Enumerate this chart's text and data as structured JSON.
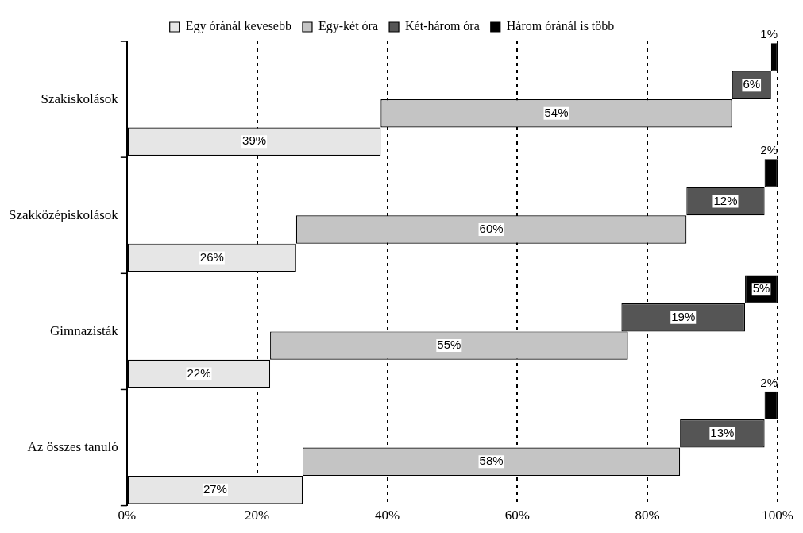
{
  "chart_data": {
    "type": "bar",
    "orientation": "horizontal",
    "categories": [
      "Szakiskolások",
      "Szakközépiskolások",
      "Gimnazisták",
      "Az összes tanuló"
    ],
    "series": [
      {
        "name": "Egy óránál kevesebb",
        "color": "#e6e6e6",
        "values": [
          39,
          26,
          22,
          27
        ],
        "base": [
          0,
          0,
          0,
          0
        ],
        "value_labels": [
          "39%",
          "26%",
          "22%",
          "27%"
        ]
      },
      {
        "name": "Egy-két óra",
        "color": "#c4c4c4",
        "values": [
          54,
          60,
          55,
          58
        ],
        "base": [
          39,
          26,
          22,
          27
        ],
        "value_labels": [
          "54%",
          "60%",
          "55%",
          "58%"
        ]
      },
      {
        "name": "Két-három óra",
        "color": "#555555",
        "values": [
          6,
          12,
          19,
          13
        ],
        "base": [
          93,
          86,
          76,
          85
        ],
        "value_labels": [
          "6%",
          "12%",
          "19%",
          "13%"
        ]
      },
      {
        "name": "Három óránál is több",
        "color": "#000000",
        "values": [
          1,
          2,
          5,
          2
        ],
        "base": [
          99,
          98,
          95,
          98
        ],
        "value_labels": [
          "1%",
          "2%",
          "5%",
          "2%"
        ]
      }
    ],
    "xlim": [
      0,
      100
    ],
    "xticks": [
      {
        "value": 0,
        "label": "0%"
      },
      {
        "value": 20,
        "label": "20%"
      },
      {
        "value": 40,
        "label": "40%"
      },
      {
        "value": 60,
        "label": "60%"
      },
      {
        "value": 80,
        "label": "80%"
      },
      {
        "value": 100,
        "label": "100%"
      }
    ],
    "grid": "x",
    "legend": "top"
  }
}
